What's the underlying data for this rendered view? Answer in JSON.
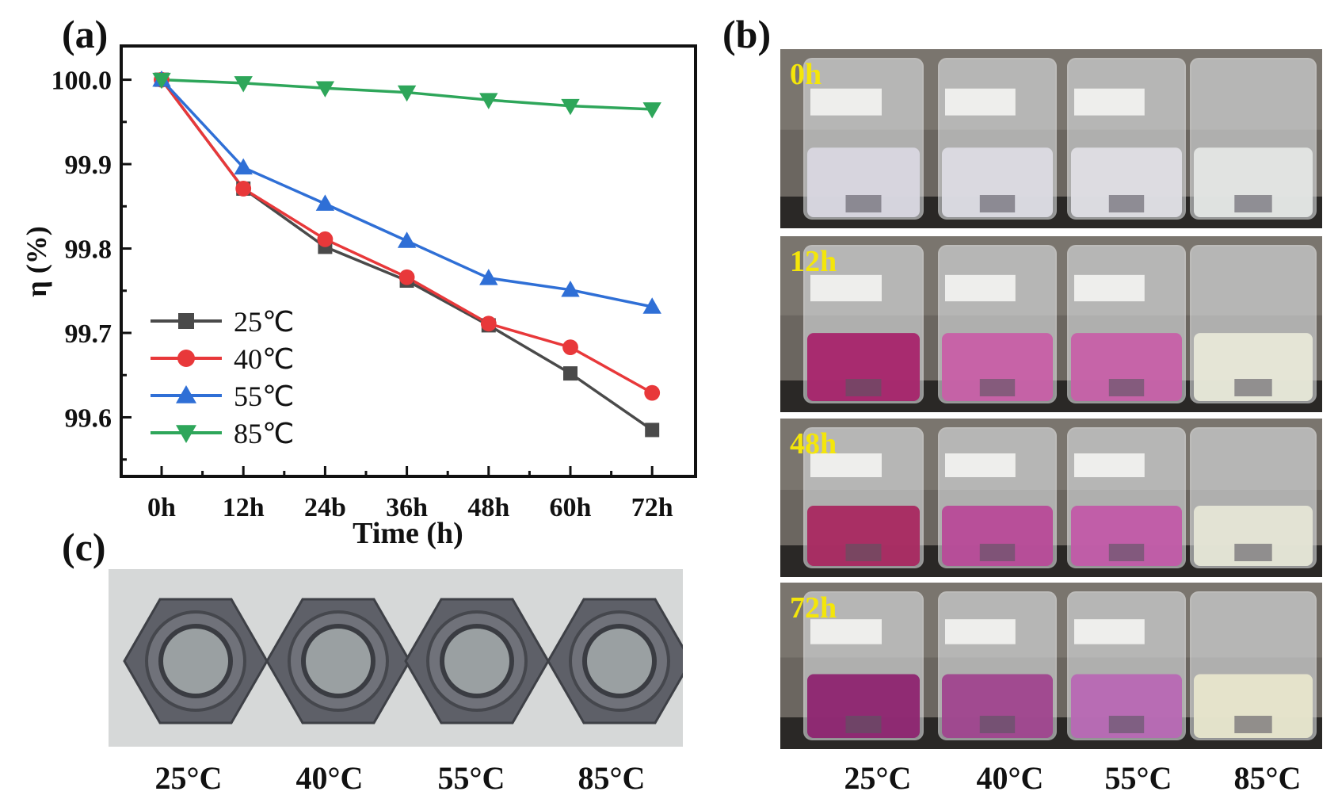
{
  "panels": {
    "a": "(a)",
    "b": "(b)",
    "c": "(c)"
  },
  "chart_data": {
    "type": "line",
    "title": "",
    "xlabel": "Time (h)",
    "ylabel": "η (%)",
    "categories": [
      "0h",
      "12h",
      "24b",
      "36h",
      "48h",
      "60h",
      "72h"
    ],
    "ylim": [
      99.53,
      100.04
    ],
    "yticks": [
      100.0,
      99.9,
      99.8,
      99.7,
      99.6
    ],
    "ytick_labels": [
      "100.0",
      "99.9",
      "99.8",
      "99.7",
      "99.6"
    ],
    "legend_position": "bottom-left",
    "series": [
      {
        "name": "25℃",
        "color": "#4a4a4a",
        "marker": "square",
        "values": [
          100.0,
          99.871,
          99.802,
          99.762,
          99.709,
          99.652,
          99.585
        ]
      },
      {
        "name": "40℃",
        "color": "#e8383a",
        "marker": "circle",
        "values": [
          100.0,
          99.871,
          99.811,
          99.766,
          99.711,
          99.683,
          99.629
        ]
      },
      {
        "name": "55℃",
        "color": "#2f6fd6",
        "marker": "triangle-up",
        "values": [
          100.0,
          99.896,
          99.853,
          99.809,
          99.765,
          99.751,
          99.731
        ]
      },
      {
        "name": "85℃",
        "color": "#2ea65a",
        "marker": "triangle-down",
        "values": [
          100.0,
          99.996,
          99.99,
          99.985,
          99.976,
          99.969,
          99.965
        ]
      }
    ]
  },
  "photo_b": {
    "time_tags": [
      "0h",
      "12h",
      "48h",
      "72h"
    ],
    "liquid_colors": [
      [
        "#d9d7e0",
        "#dcdbe3",
        "#dfdee4",
        "#e4e6e4"
      ],
      [
        "#a8246c",
        "#c85fa6",
        "#c760a8",
        "#e8e8d8"
      ],
      [
        "#a92860",
        "#b84a98",
        "#c25aa8",
        "#e6e6d6"
      ],
      [
        "#8e2470",
        "#a0448e",
        "#b868b4",
        "#e8e6cc"
      ]
    ],
    "labels": [
      "25°C",
      "40°C",
      "55°C",
      "85°C"
    ]
  },
  "photo_c": {
    "labels": [
      "25°C",
      "40°C",
      "55°C",
      "85°C"
    ],
    "nut_color": "#5e6068"
  }
}
